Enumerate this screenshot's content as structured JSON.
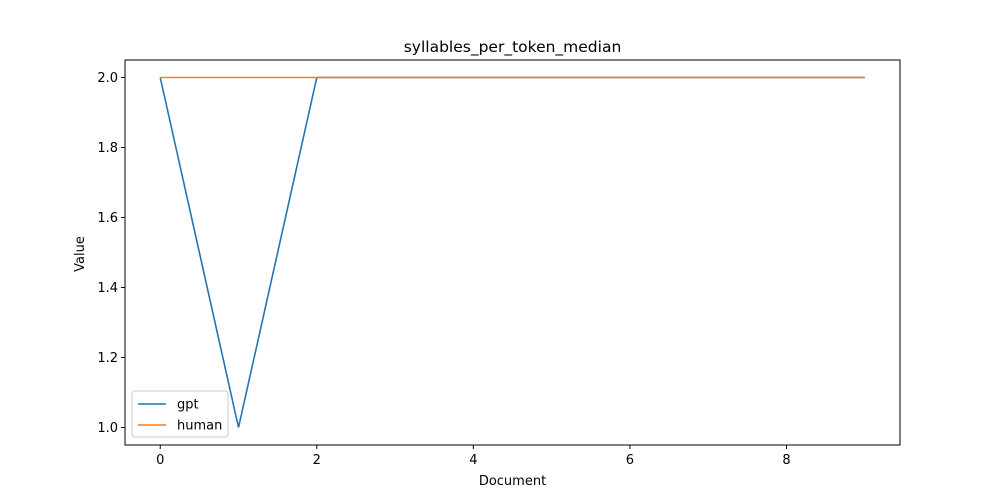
{
  "chart_data": {
    "type": "line",
    "title": "syllables_per_token_median",
    "xlabel": "Document",
    "ylabel": "Value",
    "xlim": [
      -0.45,
      9.45
    ],
    "ylim": [
      0.95,
      2.05
    ],
    "x_ticks": [
      0,
      2,
      4,
      6,
      8
    ],
    "y_ticks": [
      1.0,
      1.2,
      1.4,
      1.6,
      1.8,
      2.0
    ],
    "x_tick_labels": [
      "0",
      "2",
      "4",
      "6",
      "8"
    ],
    "y_tick_labels": [
      "1.0",
      "1.2",
      "1.4",
      "1.6",
      "1.8",
      "2.0"
    ],
    "x": [
      0,
      1,
      2,
      3,
      4,
      5,
      6,
      7,
      8,
      9
    ],
    "series": [
      {
        "name": "gpt",
        "color": "#1f77b4",
        "values": [
          2,
          1,
          2,
          2,
          2,
          2,
          2,
          2,
          2,
          2
        ]
      },
      {
        "name": "human",
        "color": "#ff7f0e",
        "values": [
          2,
          2,
          2,
          2,
          2,
          2,
          2,
          2,
          2,
          2
        ]
      }
    ],
    "legend": {
      "placement": "lower-left",
      "entries": [
        "gpt",
        "human"
      ]
    },
    "grid": false
  }
}
